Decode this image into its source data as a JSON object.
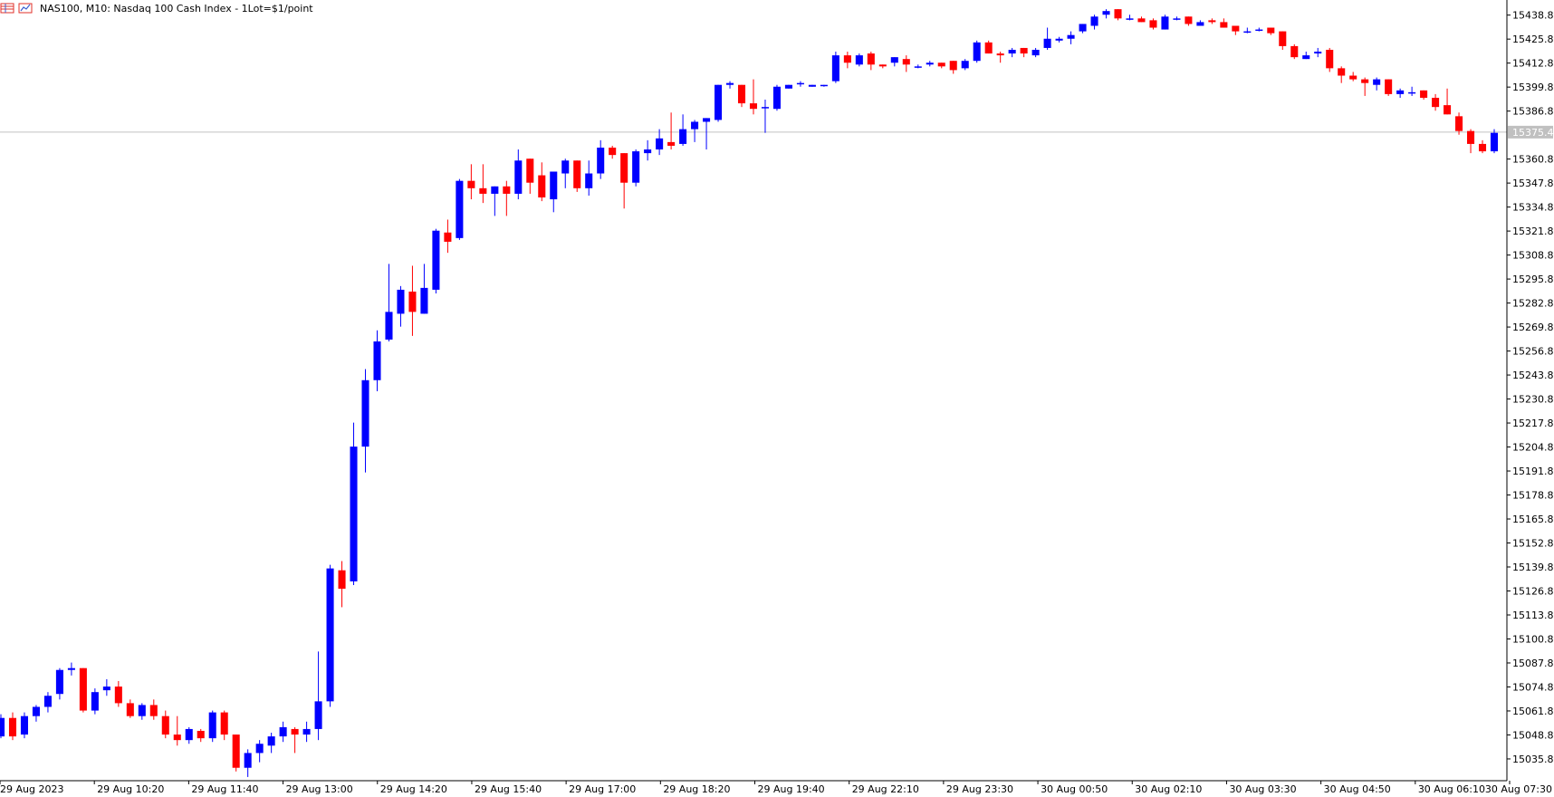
{
  "window": {
    "title": "NAS100, M10:  Nasdaq 100 Cash Index - 1Lot=$1/point",
    "icons": [
      "table-icon",
      "chart-icon"
    ]
  },
  "colors": {
    "bull": "#0000ff",
    "bear": "#ff0000",
    "axis": "#000000",
    "price_line": "#c0c0c0",
    "price_tag": "#c0c0c0",
    "background": "#ffffff"
  },
  "chart_data": {
    "type": "candlestick",
    "symbol": "NAS100",
    "timeframe": "M10",
    "current_price": "15375.4",
    "ylim": [
      15024,
      15446
    ],
    "x_tick_labels": [
      "29 Aug 2023",
      "29 Aug 10:20",
      "29 Aug 11:40",
      "29 Aug 13:00",
      "29 Aug 14:20",
      "29 Aug 15:40",
      "29 Aug 17:00",
      "29 Aug 18:20",
      "29 Aug 19:40",
      "29 Aug 22:10",
      "29 Aug 23:30",
      "30 Aug 00:50",
      "30 Aug 02:10",
      "30 Aug 03:30",
      "30 Aug 04:50",
      "30 Aug 06:10",
      "30 Aug 07:30"
    ],
    "y_tick_labels": [
      "15438.8",
      "15425.8",
      "15412.8",
      "15399.8",
      "15386.8",
      "15360.8",
      "15347.8",
      "15334.8",
      "15321.8",
      "15308.8",
      "15295.8",
      "15282.8",
      "15269.8",
      "15256.8",
      "15243.8",
      "15230.8",
      "15217.8",
      "15204.8",
      "15191.8",
      "15178.8",
      "15165.8",
      "15152.8",
      "15139.8",
      "15126.8",
      "15113.8",
      "15100.8",
      "15087.8",
      "15074.8",
      "15061.8",
      "15048.8",
      "15035.8"
    ],
    "candles": [
      [
        15048,
        15060,
        15047,
        15058
      ],
      [
        15058,
        15061,
        15046,
        15048
      ],
      [
        15049,
        15061,
        15047,
        15059
      ],
      [
        15059,
        15065,
        15056,
        15064
      ],
      [
        15064,
        15072,
        15061,
        15070
      ],
      [
        15071,
        15085,
        15068,
        15084
      ],
      [
        15084,
        15088,
        15081,
        15085
      ],
      [
        15085,
        15085,
        15061,
        15062
      ],
      [
        15062,
        15074,
        15060,
        15072
      ],
      [
        15073,
        15079,
        15070,
        15075
      ],
      [
        15075,
        15078,
        15064,
        15066
      ],
      [
        15066,
        15068,
        15058,
        15059
      ],
      [
        15059,
        15066,
        15057,
        15065
      ],
      [
        15065,
        15068,
        15057,
        15059
      ],
      [
        15059,
        15062,
        15047,
        15049
      ],
      [
        15049,
        15059,
        15043,
        15046
      ],
      [
        15046,
        15053,
        15044,
        15052
      ],
      [
        15051,
        15052,
        15045,
        15047
      ],
      [
        15047,
        15062,
        15045,
        15061
      ],
      [
        15061,
        15062,
        15046,
        15049
      ],
      [
        15049,
        15049,
        15029,
        15031
      ],
      [
        15031,
        15041,
        15026,
        15039
      ],
      [
        15039,
        15046,
        15034,
        15044
      ],
      [
        15043,
        15050,
        15039,
        15048
      ],
      [
        15048,
        15056,
        15045,
        15053
      ],
      [
        15052,
        15053,
        15039,
        15049
      ],
      [
        15049,
        15056,
        15045,
        15052
      ],
      [
        15052,
        15094,
        15046,
        15067
      ],
      [
        15067,
        15141,
        15064,
        15139
      ],
      [
        15138,
        15143,
        15118,
        15128
      ],
      [
        15132,
        15218,
        15130,
        15205
      ],
      [
        15205,
        15247,
        15191,
        15241
      ],
      [
        15241,
        15268,
        15235,
        15262
      ],
      [
        15263,
        15304,
        15262,
        15278
      ],
      [
        15277,
        15292,
        15270,
        15290
      ],
      [
        15289,
        15303,
        15265,
        15278
      ],
      [
        15277,
        15304,
        15277,
        15291
      ],
      [
        15290,
        15323,
        15288,
        15322
      ],
      [
        15321,
        15328,
        15310,
        15316
      ],
      [
        15318,
        15350,
        15317,
        15349
      ],
      [
        15349,
        15358,
        15339,
        15345
      ],
      [
        15345,
        15358,
        15337,
        15342
      ],
      [
        15342,
        15346,
        15330,
        15346
      ],
      [
        15346,
        15349,
        15330,
        15342
      ],
      [
        15342,
        15366,
        15339,
        15360
      ],
      [
        15361,
        15361,
        15342,
        15348
      ],
      [
        15352,
        15359,
        15338,
        15340
      ],
      [
        15339,
        15354,
        15332,
        15354
      ],
      [
        15353,
        15361,
        15345,
        15360
      ],
      [
        15360,
        15359,
        15343,
        15345
      ],
      [
        15345,
        15360,
        15341,
        15353
      ],
      [
        15353,
        15371,
        15350,
        15367
      ],
      [
        15367,
        15368,
        15361,
        15363
      ],
      [
        15364,
        15364,
        15334,
        15348
      ],
      [
        15348,
        15366,
        15346,
        15365
      ],
      [
        15364,
        15371,
        15360,
        15366
      ],
      [
        15366,
        15377,
        15363,
        15372
      ],
      [
        15370,
        15386,
        15366,
        15368
      ],
      [
        15369,
        15385,
        15368,
        15377
      ],
      [
        15377,
        15382,
        15370,
        15381
      ],
      [
        15381,
        15381,
        15366,
        15383
      ],
      [
        15382,
        15401,
        15381,
        15401
      ],
      [
        15401,
        15403,
        15399,
        15402
      ],
      [
        15401,
        15401,
        15389,
        15391
      ],
      [
        15391,
        15404,
        15385,
        15388
      ],
      [
        15389,
        15393,
        15375,
        15389
      ],
      [
        15388,
        15401,
        15387,
        15400
      ],
      [
        15399,
        15401,
        15399,
        15401
      ],
      [
        15402,
        15403,
        15400,
        15402
      ],
      [
        15400,
        15401,
        15400,
        15401
      ],
      [
        15401,
        15401,
        15400,
        15401
      ],
      [
        15403,
        15419,
        15402,
        15417
      ],
      [
        15417,
        15419,
        15410,
        15413
      ],
      [
        15412,
        15418,
        15411,
        15417
      ],
      [
        15418,
        15419,
        15409,
        15412
      ],
      [
        15412,
        15412,
        15410,
        15411
      ],
      [
        15413,
        15416,
        15411,
        15416
      ],
      [
        15415,
        15417,
        15408,
        15412
      ],
      [
        15411,
        15412,
        15410,
        15411
      ],
      [
        15412,
        15414,
        15411,
        15413
      ],
      [
        15413,
        15413,
        15410,
        15411
      ],
      [
        15414,
        15414,
        15407,
        15409
      ],
      [
        15410,
        15415,
        15409,
        15414
      ],
      [
        15414,
        15425,
        15413,
        15424
      ],
      [
        15424,
        15425,
        15418,
        15418
      ],
      [
        15418,
        15419,
        15413,
        15417
      ],
      [
        15418,
        15421,
        15416,
        15420
      ],
      [
        15421,
        15421,
        15416,
        15418
      ],
      [
        15417,
        15421,
        15416,
        15420
      ],
      [
        15421,
        15432,
        15420,
        15426
      ],
      [
        15425,
        15427,
        15424,
        15426
      ],
      [
        15426,
        15430,
        15423,
        15428
      ],
      [
        15430,
        15434,
        15429,
        15434
      ],
      [
        15433,
        15439,
        15431,
        15438
      ],
      [
        15439,
        15442,
        15437,
        15441
      ],
      [
        15442,
        15442,
        15436,
        15437
      ],
      [
        15437,
        15439,
        15436,
        15437
      ],
      [
        15437,
        15438,
        15435,
        15435
      ],
      [
        15436,
        15437,
        15431,
        15432
      ],
      [
        15431,
        15439,
        15431,
        15438
      ],
      [
        15437,
        15438,
        15436,
        15437
      ],
      [
        15438,
        15437,
        15433,
        15434
      ],
      [
        15433,
        15436,
        15433,
        15435
      ],
      [
        15436,
        15437,
        15434,
        15435
      ],
      [
        15435,
        15437,
        15432,
        15432
      ],
      [
        15433,
        15433,
        15428,
        15430
      ],
      [
        15430,
        15432,
        15429,
        15430
      ],
      [
        15431,
        15432,
        15430,
        15431
      ],
      [
        15432,
        15432,
        15428,
        15429
      ],
      [
        15430,
        15428,
        15420,
        15422
      ],
      [
        15422,
        15423,
        15415,
        15416
      ],
      [
        15415,
        15419,
        15415,
        15417
      ],
      [
        15418,
        15421,
        15416,
        15419
      ],
      [
        15420,
        15421,
        15408,
        15410
      ],
      [
        15410,
        15411,
        15402,
        15406
      ],
      [
        15406,
        15408,
        15403,
        15404
      ],
      [
        15404,
        15405,
        15395,
        15402
      ],
      [
        15401,
        15405,
        15398,
        15404
      ],
      [
        15404,
        15403,
        15395,
        15396
      ],
      [
        15396,
        15399,
        15394,
        15398
      ],
      [
        15397,
        15400,
        15395,
        15397
      ],
      [
        15398,
        15398,
        15393,
        15394
      ],
      [
        15394,
        15396,
        15387,
        15389
      ],
      [
        15390,
        15399,
        15388,
        15385
      ],
      [
        15384,
        15386,
        15374,
        15376
      ],
      [
        15376,
        15377,
        15364,
        15369
      ],
      [
        15369,
        15371,
        15364,
        15365
      ],
      [
        15365,
        15377,
        15364,
        15375
      ]
    ]
  }
}
